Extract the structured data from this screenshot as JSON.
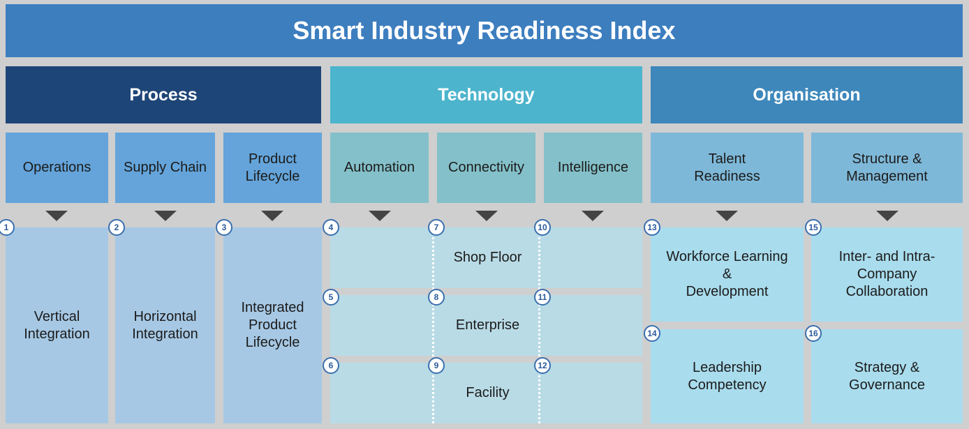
{
  "title": "Smart Industry Readiness Index",
  "pillars": {
    "process": "Process",
    "technology": "Technology",
    "organisation": "Organisation"
  },
  "building_blocks": {
    "operations": "Operations",
    "supply_chain": "Supply Chain",
    "product_lifecycle": "Product\nLifecycle",
    "automation": "Automation",
    "connectivity": "Connectivity",
    "intelligence": "Intelligence",
    "talent_readiness": "Talent\nReadiness",
    "structure_management": "Structure &\nManagement"
  },
  "dimensions": {
    "d1": "Vertical\nIntegration",
    "d2": "Horizontal\nIntegration",
    "d3": "Integrated\nProduct\nLifecycle",
    "shop_floor": "Shop Floor",
    "enterprise": "Enterprise",
    "facility": "Facility",
    "d13": "Workforce Learning\n&\nDevelopment",
    "d14": "Leadership\nCompetency",
    "d15": "Inter- and Intra-\nCompany\nCollaboration",
    "d16": "Strategy &\nGovernance"
  },
  "badges": [
    "1",
    "2",
    "3",
    "4",
    "5",
    "6",
    "7",
    "8",
    "9",
    "10",
    "11",
    "12",
    "13",
    "14",
    "15",
    "16"
  ]
}
